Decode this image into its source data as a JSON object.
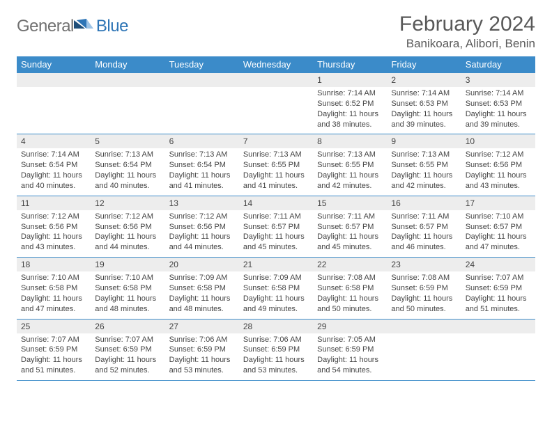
{
  "brand": {
    "word1": "General",
    "word2": "Blue",
    "mark_colors": {
      "dark": "#1f4e79",
      "mid": "#2e75b6",
      "light": "#9dc3e6"
    }
  },
  "title": {
    "month_year": "February 2024",
    "location": "Banikoara, Alibori, Benin"
  },
  "colors": {
    "header_bg": "#3b8bc9",
    "header_text": "#ffffff",
    "daynum_bg": "#ededed",
    "rule": "#3b8bc9",
    "text": "#444444"
  },
  "day_headers": [
    "Sunday",
    "Monday",
    "Tuesday",
    "Wednesday",
    "Thursday",
    "Friday",
    "Saturday"
  ],
  "weeks": [
    [
      {
        "n": "",
        "sunrise": "",
        "sunset": "",
        "daylight": ""
      },
      {
        "n": "",
        "sunrise": "",
        "sunset": "",
        "daylight": ""
      },
      {
        "n": "",
        "sunrise": "",
        "sunset": "",
        "daylight": ""
      },
      {
        "n": "",
        "sunrise": "",
        "sunset": "",
        "daylight": ""
      },
      {
        "n": "1",
        "sunrise": "Sunrise: 7:14 AM",
        "sunset": "Sunset: 6:52 PM",
        "daylight": "Daylight: 11 hours and 38 minutes."
      },
      {
        "n": "2",
        "sunrise": "Sunrise: 7:14 AM",
        "sunset": "Sunset: 6:53 PM",
        "daylight": "Daylight: 11 hours and 39 minutes."
      },
      {
        "n": "3",
        "sunrise": "Sunrise: 7:14 AM",
        "sunset": "Sunset: 6:53 PM",
        "daylight": "Daylight: 11 hours and 39 minutes."
      }
    ],
    [
      {
        "n": "4",
        "sunrise": "Sunrise: 7:14 AM",
        "sunset": "Sunset: 6:54 PM",
        "daylight": "Daylight: 11 hours and 40 minutes."
      },
      {
        "n": "5",
        "sunrise": "Sunrise: 7:13 AM",
        "sunset": "Sunset: 6:54 PM",
        "daylight": "Daylight: 11 hours and 40 minutes."
      },
      {
        "n": "6",
        "sunrise": "Sunrise: 7:13 AM",
        "sunset": "Sunset: 6:54 PM",
        "daylight": "Daylight: 11 hours and 41 minutes."
      },
      {
        "n": "7",
        "sunrise": "Sunrise: 7:13 AM",
        "sunset": "Sunset: 6:55 PM",
        "daylight": "Daylight: 11 hours and 41 minutes."
      },
      {
        "n": "8",
        "sunrise": "Sunrise: 7:13 AM",
        "sunset": "Sunset: 6:55 PM",
        "daylight": "Daylight: 11 hours and 42 minutes."
      },
      {
        "n": "9",
        "sunrise": "Sunrise: 7:13 AM",
        "sunset": "Sunset: 6:55 PM",
        "daylight": "Daylight: 11 hours and 42 minutes."
      },
      {
        "n": "10",
        "sunrise": "Sunrise: 7:12 AM",
        "sunset": "Sunset: 6:56 PM",
        "daylight": "Daylight: 11 hours and 43 minutes."
      }
    ],
    [
      {
        "n": "11",
        "sunrise": "Sunrise: 7:12 AM",
        "sunset": "Sunset: 6:56 PM",
        "daylight": "Daylight: 11 hours and 43 minutes."
      },
      {
        "n": "12",
        "sunrise": "Sunrise: 7:12 AM",
        "sunset": "Sunset: 6:56 PM",
        "daylight": "Daylight: 11 hours and 44 minutes."
      },
      {
        "n": "13",
        "sunrise": "Sunrise: 7:12 AM",
        "sunset": "Sunset: 6:56 PM",
        "daylight": "Daylight: 11 hours and 44 minutes."
      },
      {
        "n": "14",
        "sunrise": "Sunrise: 7:11 AM",
        "sunset": "Sunset: 6:57 PM",
        "daylight": "Daylight: 11 hours and 45 minutes."
      },
      {
        "n": "15",
        "sunrise": "Sunrise: 7:11 AM",
        "sunset": "Sunset: 6:57 PM",
        "daylight": "Daylight: 11 hours and 45 minutes."
      },
      {
        "n": "16",
        "sunrise": "Sunrise: 7:11 AM",
        "sunset": "Sunset: 6:57 PM",
        "daylight": "Daylight: 11 hours and 46 minutes."
      },
      {
        "n": "17",
        "sunrise": "Sunrise: 7:10 AM",
        "sunset": "Sunset: 6:57 PM",
        "daylight": "Daylight: 11 hours and 47 minutes."
      }
    ],
    [
      {
        "n": "18",
        "sunrise": "Sunrise: 7:10 AM",
        "sunset": "Sunset: 6:58 PM",
        "daylight": "Daylight: 11 hours and 47 minutes."
      },
      {
        "n": "19",
        "sunrise": "Sunrise: 7:10 AM",
        "sunset": "Sunset: 6:58 PM",
        "daylight": "Daylight: 11 hours and 48 minutes."
      },
      {
        "n": "20",
        "sunrise": "Sunrise: 7:09 AM",
        "sunset": "Sunset: 6:58 PM",
        "daylight": "Daylight: 11 hours and 48 minutes."
      },
      {
        "n": "21",
        "sunrise": "Sunrise: 7:09 AM",
        "sunset": "Sunset: 6:58 PM",
        "daylight": "Daylight: 11 hours and 49 minutes."
      },
      {
        "n": "22",
        "sunrise": "Sunrise: 7:08 AM",
        "sunset": "Sunset: 6:58 PM",
        "daylight": "Daylight: 11 hours and 50 minutes."
      },
      {
        "n": "23",
        "sunrise": "Sunrise: 7:08 AM",
        "sunset": "Sunset: 6:59 PM",
        "daylight": "Daylight: 11 hours and 50 minutes."
      },
      {
        "n": "24",
        "sunrise": "Sunrise: 7:07 AM",
        "sunset": "Sunset: 6:59 PM",
        "daylight": "Daylight: 11 hours and 51 minutes."
      }
    ],
    [
      {
        "n": "25",
        "sunrise": "Sunrise: 7:07 AM",
        "sunset": "Sunset: 6:59 PM",
        "daylight": "Daylight: 11 hours and 51 minutes."
      },
      {
        "n": "26",
        "sunrise": "Sunrise: 7:07 AM",
        "sunset": "Sunset: 6:59 PM",
        "daylight": "Daylight: 11 hours and 52 minutes."
      },
      {
        "n": "27",
        "sunrise": "Sunrise: 7:06 AM",
        "sunset": "Sunset: 6:59 PM",
        "daylight": "Daylight: 11 hours and 53 minutes."
      },
      {
        "n": "28",
        "sunrise": "Sunrise: 7:06 AM",
        "sunset": "Sunset: 6:59 PM",
        "daylight": "Daylight: 11 hours and 53 minutes."
      },
      {
        "n": "29",
        "sunrise": "Sunrise: 7:05 AM",
        "sunset": "Sunset: 6:59 PM",
        "daylight": "Daylight: 11 hours and 54 minutes."
      },
      {
        "n": "",
        "sunrise": "",
        "sunset": "",
        "daylight": ""
      },
      {
        "n": "",
        "sunrise": "",
        "sunset": "",
        "daylight": ""
      }
    ]
  ]
}
